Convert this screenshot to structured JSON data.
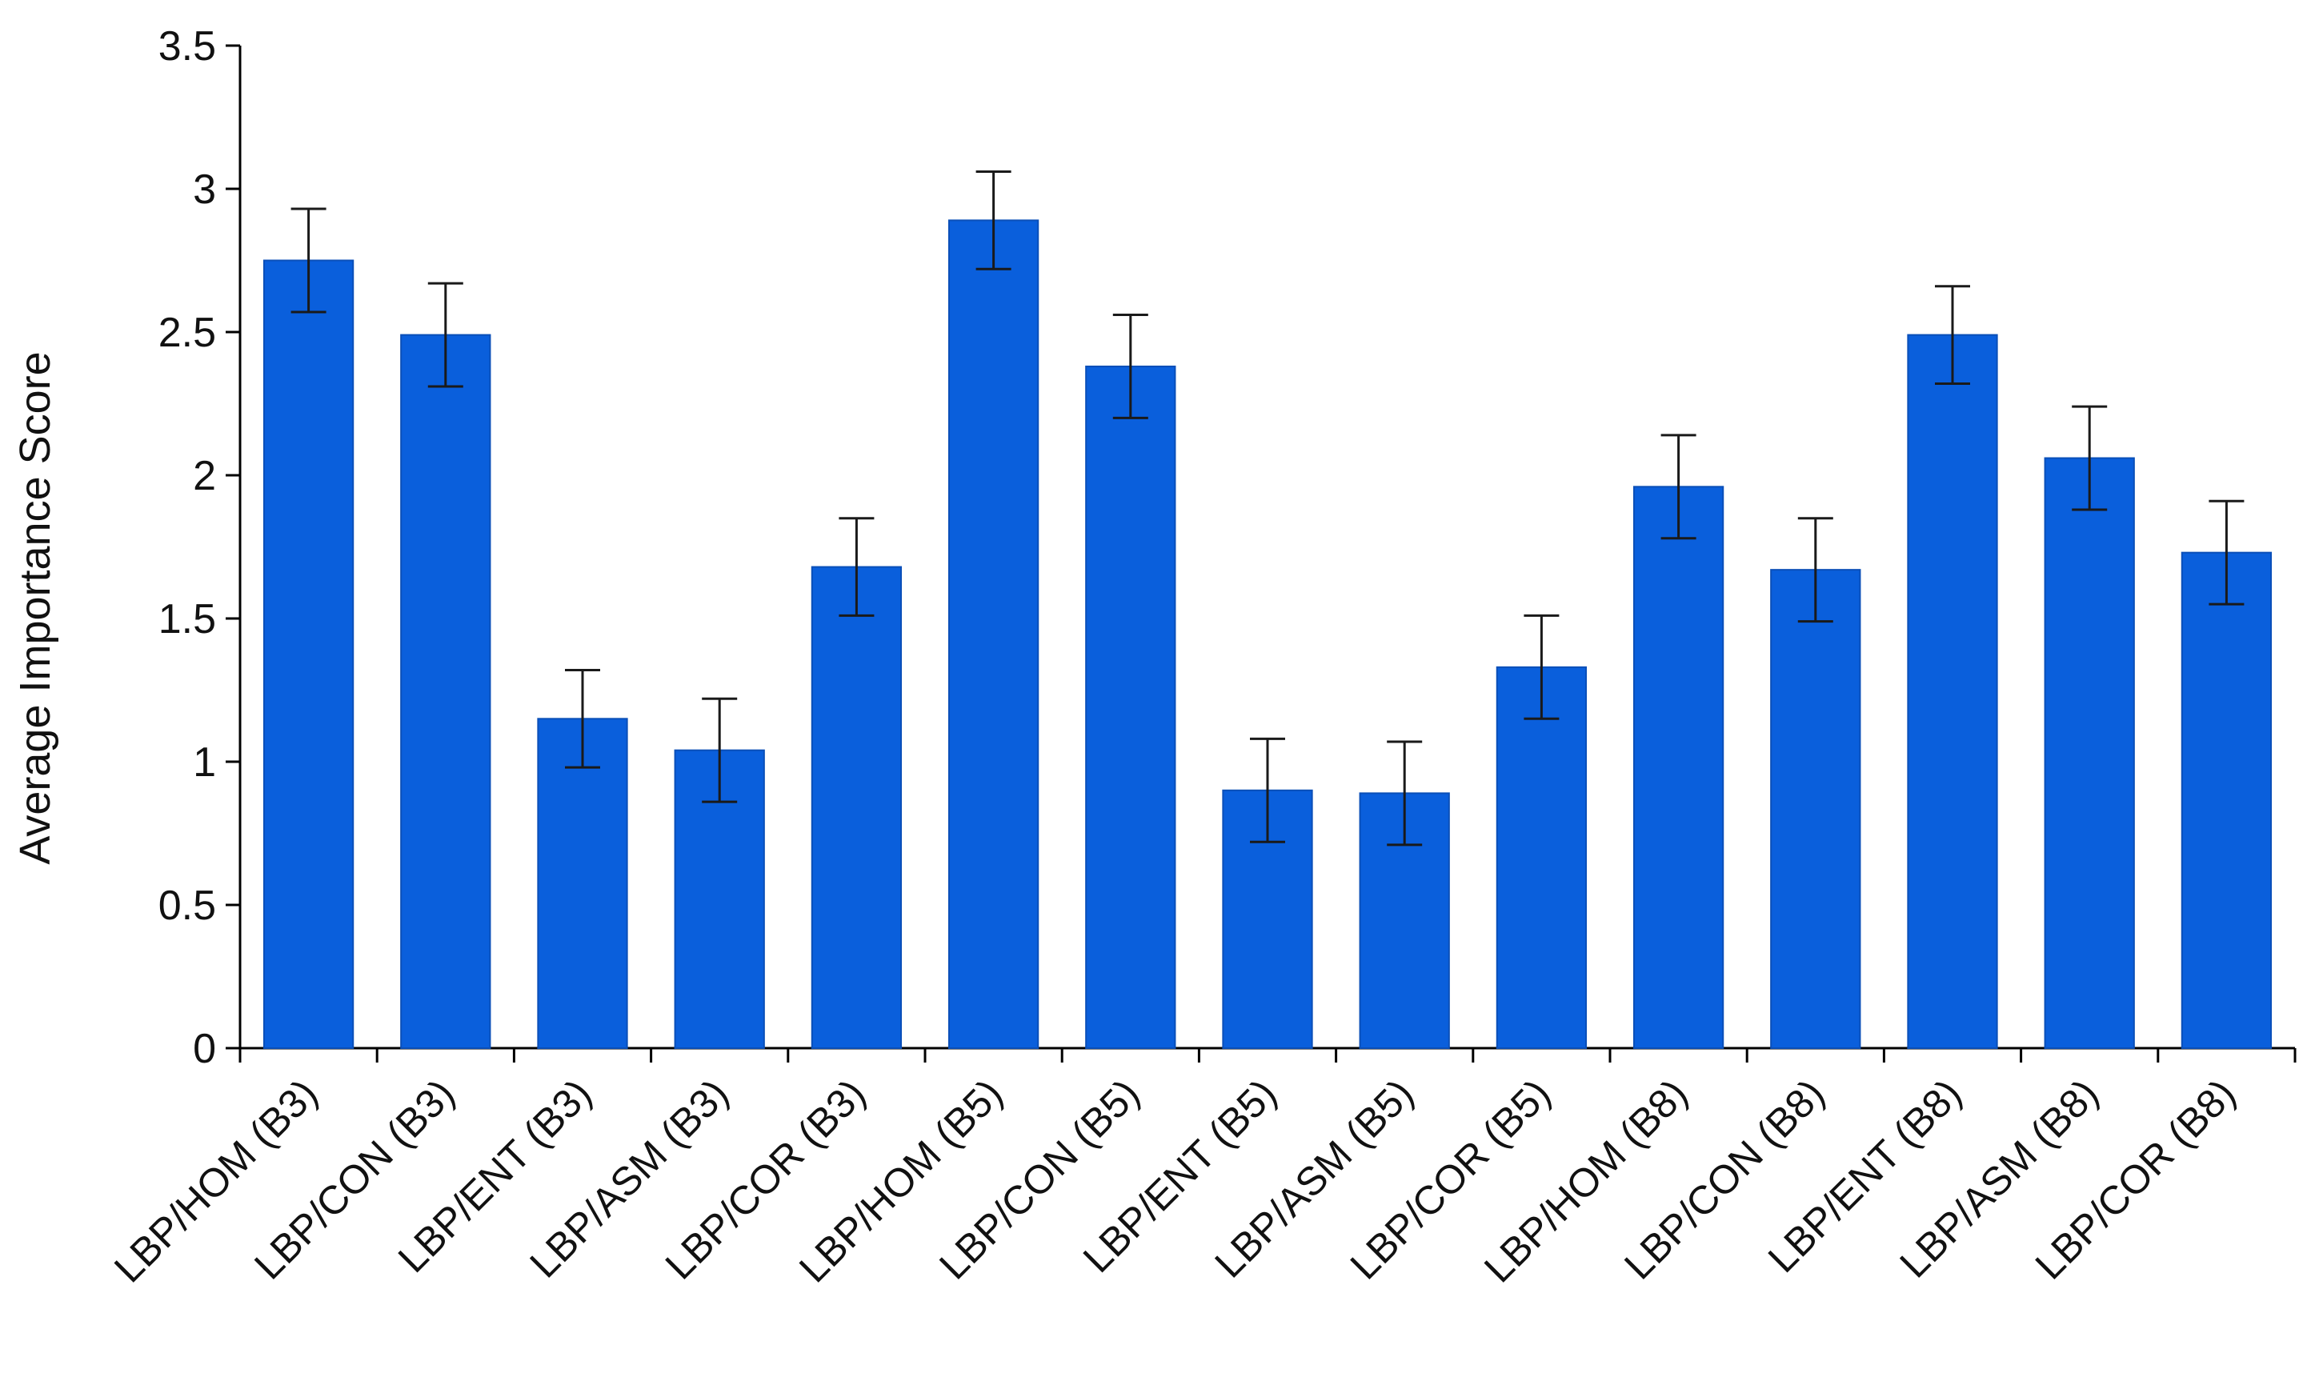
{
  "chart_data": {
    "type": "bar",
    "title": "",
    "xlabel": "",
    "ylabel": "Average Importance Score",
    "ylim": [
      0,
      3.5
    ],
    "yticks": [
      0,
      0.5,
      1,
      1.5,
      2,
      2.5,
      3,
      3.5
    ],
    "ytick_labels": [
      "0",
      "0.5",
      "1",
      "1.5",
      "2",
      "2.5",
      "3",
      "3.5"
    ],
    "grid": false,
    "legend": "none",
    "bar_color": "#0a5fdc",
    "categories": [
      "LBP/HOM (B3)",
      "LBP/CON (B3)",
      "LBP/ENT (B3)",
      "LBP/ASM (B3)",
      "LBP/COR (B3)",
      "LBP/HOM (B5)",
      "LBP/CON (B5)",
      "LBP/ENT (B5)",
      "LBP/ASM (B5)",
      "LBP/COR (B5)",
      "LBP/HOM (B8)",
      "LBP/CON (B8)",
      "LBP/ENT (B8)",
      "LBP/ASM (B8)",
      "LBP/COR (B8)"
    ],
    "values": [
      2.75,
      2.49,
      1.15,
      1.04,
      1.68,
      2.89,
      2.38,
      0.9,
      0.89,
      1.33,
      1.96,
      1.67,
      2.49,
      2.06,
      1.73
    ],
    "error": [
      0.18,
      0.18,
      0.17,
      0.18,
      0.17,
      0.17,
      0.18,
      0.18,
      0.18,
      0.18,
      0.18,
      0.18,
      0.17,
      0.18,
      0.18
    ]
  }
}
